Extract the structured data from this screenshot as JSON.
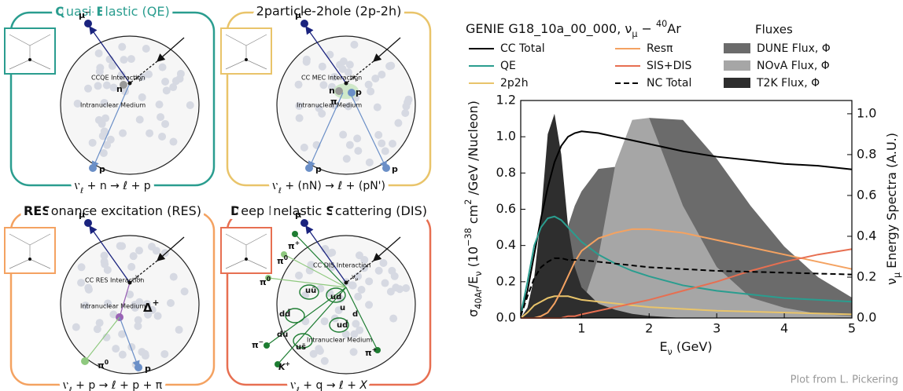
{
  "panels": [
    {
      "title": [
        "Q",
        "uasi-",
        "E",
        "lastic (QE)"
      ],
      "interaction": "CCQE Interaction",
      "medium": "Intranuclear Medium",
      "lepton": [
        "μ",
        "−"
      ],
      "neutrino": [
        "ν",
        "μ"
      ],
      "target": "n",
      "outgoing": [
        "p"
      ],
      "equation": [
        "ν",
        "ℓ",
        " + n → ℓ + p"
      ]
    },
    {
      "title": [
        "2particle-2hole (2p-2h)"
      ],
      "interaction": "CC MEC Interaction",
      "medium": "Intranuclear Medium",
      "lepton": [
        "μ",
        "−"
      ],
      "neutrino": [
        "ν",
        "μ"
      ],
      "target": "n",
      "meson": [
        "π"
      ],
      "outgoing": [
        "p",
        "p",
        "p"
      ],
      "equation": [
        "ν",
        "ℓ",
        " + (nN) → ℓ + (pN')"
      ]
    },
    {
      "title": [
        "RES",
        "onance excitation (RES)"
      ],
      "interaction": "CC RES Interaction",
      "medium": "Intranuclear Medium",
      "lepton": [
        "μ",
        "−"
      ],
      "neutrino": [
        "ν",
        "μ"
      ],
      "resonance": [
        "Δ",
        "+"
      ],
      "outgoing": [
        "π",
        "0",
        "p"
      ],
      "equation": [
        "ν",
        "ℓ",
        " + p → ℓ + p + π"
      ]
    },
    {
      "title": [
        "D",
        "eep ",
        "I",
        "nelastic ",
        "S",
        "cattering (DIS)"
      ],
      "interaction": "CC DIS Interaction",
      "medium": "Intranuclear Medium",
      "lepton": [
        "μ",
        "−"
      ],
      "neutrino": [
        "ν",
        "μ"
      ],
      "quarks": [
        "uū",
        "ud",
        "dd̄",
        "u",
        "d",
        "dū",
        "ud̄",
        "us̄"
      ],
      "mesons": [
        [
          "π",
          "+"
        ],
        [
          "π",
          "0"
        ],
        [
          "π",
          "0"
        ],
        [
          "π",
          "−"
        ],
        [
          "K",
          "+"
        ],
        [
          "π",
          "+"
        ]
      ],
      "equation": [
        "ν",
        "ℓ",
        " + q → ℓ + ",
        "X"
      ]
    }
  ],
  "chart_data": {
    "type": "line",
    "title": [
      "GENIE G18_10a_00_000, ν",
      "μ",
      " − ",
      "40",
      "Ar"
    ],
    "xlabel": [
      "E",
      "ν",
      " (GeV)"
    ],
    "ylabel": [
      "σ",
      "40Ar",
      "/E",
      "ν",
      " (10",
      "−38",
      " cm",
      "2",
      " /GeV /Nucleon)"
    ],
    "y2label": [
      "ν",
      "μ",
      " Energy Spectra (A.U.)"
    ],
    "legend_title": "Fluxes",
    "note": "Plot from L. Pickering",
    "x": [
      0.1,
      0.2,
      0.3,
      0.4,
      0.5,
      0.6,
      0.7,
      0.8,
      0.9,
      1,
      1.25,
      1.5,
      1.75,
      2,
      2.5,
      3,
      3.5,
      4,
      4.5,
      5
    ],
    "xlim": [
      0.1,
      5
    ],
    "xticks": [
      1,
      2,
      3,
      4,
      5
    ],
    "ylim": [
      0,
      1.2
    ],
    "yticks": [
      {
        "value": 0,
        "label": "0.0"
      },
      0.2,
      0.4,
      0.6,
      0.8,
      {
        "value": 1,
        "label": "1.0"
      },
      1.2
    ],
    "y2lim": [
      0,
      1.065
    ],
    "y2ticks": [
      {
        "value": 0,
        "label": "0.0"
      },
      0.2,
      0.4,
      0.6,
      0.8,
      {
        "value": 1,
        "label": "1.0"
      }
    ],
    "series": [
      {
        "name": "DUNE Flux, Φ",
        "color": "#6b6b6b",
        "axis": "y2",
        "style": "area",
        "values": [
          0,
          0.02,
          0.03,
          0.04,
          0.05,
          0.1,
          0.3,
          0.45,
          0.55,
          0.62,
          0.73,
          0.74,
          0.88,
          0.98,
          0.97,
          0.78,
          0.55,
          0.35,
          0.2,
          0.1
        ]
      },
      {
        "name": "NOvA Flux, Φ",
        "color": "#a6a6a6",
        "axis": "y2",
        "style": "area",
        "values": [
          0,
          0,
          0,
          0,
          0,
          0,
          0,
          0.01,
          0.02,
          0.05,
          0.3,
          0.75,
          0.97,
          0.98,
          0.55,
          0.25,
          0.1,
          0.05,
          0.02,
          0.01
        ]
      },
      {
        "name": "T2K Flux, Φ",
        "color": "#2e2e2e",
        "axis": "y2",
        "style": "area",
        "values": [
          0,
          0.05,
          0.2,
          0.5,
          0.9,
          1.0,
          0.8,
          0.45,
          0.25,
          0.15,
          0.07,
          0.04,
          0.02,
          0.01,
          0,
          0,
          0,
          0,
          0,
          0
        ]
      },
      {
        "name": "CC Total",
        "color": "#000000",
        "values": [
          0.02,
          0.15,
          0.35,
          0.55,
          0.72,
          0.86,
          0.95,
          1.0,
          1.02,
          1.03,
          1.02,
          1.0,
          0.98,
          0.96,
          0.92,
          0.89,
          0.87,
          0.85,
          0.84,
          0.82
        ]
      },
      {
        "name": "QE",
        "color": "#2a9d8f",
        "values": [
          0.02,
          0.2,
          0.4,
          0.5,
          0.55,
          0.56,
          0.54,
          0.5,
          0.46,
          0.42,
          0.35,
          0.3,
          0.26,
          0.23,
          0.18,
          0.15,
          0.13,
          0.11,
          0.1,
          0.09
        ]
      },
      {
        "name": "2p2h",
        "color": "#e9c46a",
        "values": [
          0,
          0.03,
          0.07,
          0.09,
          0.11,
          0.12,
          0.12,
          0.12,
          0.11,
          0.1,
          0.09,
          0.08,
          0.07,
          0.06,
          0.05,
          0.04,
          0.035,
          0.03,
          0.025,
          0.02
        ]
      },
      {
        "name": "Resπ",
        "color": "#f4a261",
        "values": [
          0,
          0,
          0,
          0.01,
          0.03,
          0.08,
          0.15,
          0.23,
          0.31,
          0.37,
          0.44,
          0.47,
          0.49,
          0.49,
          0.47,
          0.43,
          0.39,
          0.35,
          0.31,
          0.27
        ]
      },
      {
        "name": "SIS+DIS",
        "color": "#e76f51",
        "values": [
          0,
          0,
          0,
          0,
          0,
          0,
          0,
          0.01,
          0.01,
          0.02,
          0.04,
          0.06,
          0.08,
          0.1,
          0.15,
          0.2,
          0.26,
          0.31,
          0.35,
          0.38
        ]
      },
      {
        "name": "NC Total",
        "color": "#000000",
        "dash": "dashed",
        "values": [
          0.01,
          0.12,
          0.22,
          0.28,
          0.31,
          0.33,
          0.33,
          0.32,
          0.32,
          0.32,
          0.31,
          0.3,
          0.29,
          0.28,
          0.27,
          0.26,
          0.255,
          0.25,
          0.245,
          0.24
        ]
      }
    ]
  }
}
